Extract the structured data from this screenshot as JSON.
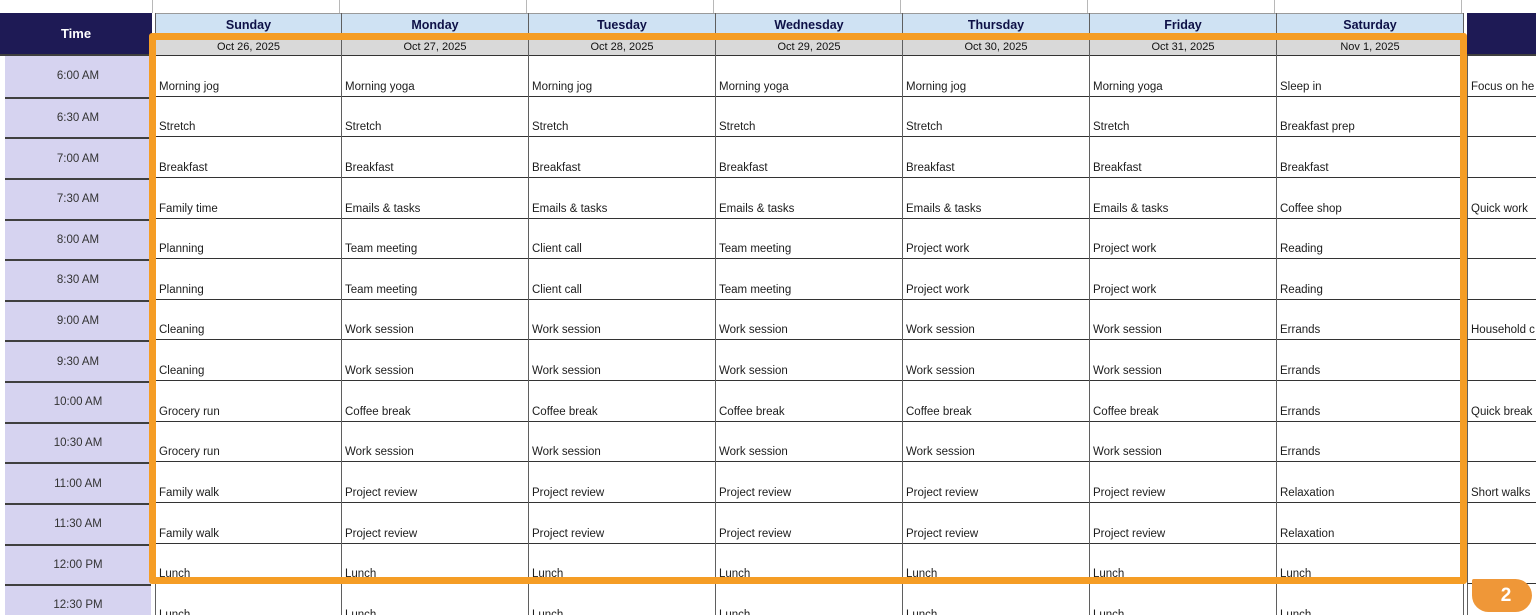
{
  "colors": {
    "navy_header": "#1e1a55",
    "time_cell_lavender": "#d6d3f0",
    "day_header_blue": "#cfe2f3",
    "date_row_gray": "#d9d9d9",
    "annotation_orange": "#f59d25",
    "badge_orange": "#ef9738"
  },
  "time_column": {
    "header": "Time",
    "slots": [
      "6:00 AM",
      "6:30 AM",
      "7:00 AM",
      "7:30 AM",
      "8:00 AM",
      "8:30 AM",
      "9:00 AM",
      "9:30 AM",
      "10:00 AM",
      "10:30 AM",
      "11:00 AM",
      "11:30 AM",
      "12:00 PM",
      "12:30 PM"
    ]
  },
  "days": [
    {
      "name": "Sunday",
      "date": "Oct 26, 2025",
      "activities": [
        "Morning jog",
        "Stretch",
        "Breakfast",
        "Family time",
        "Planning",
        "Planning",
        "Cleaning",
        "Cleaning",
        "Grocery run",
        "Grocery run",
        "Family walk",
        "Family walk",
        "Lunch",
        "Lunch"
      ]
    },
    {
      "name": "Monday",
      "date": "Oct 27, 2025",
      "activities": [
        "Morning yoga",
        "Stretch",
        "Breakfast",
        "Emails & tasks",
        "Team meeting",
        "Team meeting",
        "Work session",
        "Work session",
        "Coffee break",
        "Work session",
        "Project review",
        "Project review",
        "Lunch",
        "Lunch"
      ]
    },
    {
      "name": "Tuesday",
      "date": "Oct 28, 2025",
      "activities": [
        "Morning jog",
        "Stretch",
        "Breakfast",
        "Emails & tasks",
        "Client call",
        "Client call",
        "Work session",
        "Work session",
        "Coffee break",
        "Work session",
        "Project review",
        "Project review",
        "Lunch",
        "Lunch"
      ]
    },
    {
      "name": "Wednesday",
      "date": "Oct 29, 2025",
      "activities": [
        "Morning yoga",
        "Stretch",
        "Breakfast",
        "Emails & tasks",
        "Team meeting",
        "Team meeting",
        "Work session",
        "Work session",
        "Coffee break",
        "Work session",
        "Project review",
        "Project review",
        "Lunch",
        "Lunch"
      ]
    },
    {
      "name": "Thursday",
      "date": "Oct 30, 2025",
      "activities": [
        "Morning jog",
        "Stretch",
        "Breakfast",
        "Emails & tasks",
        "Project work",
        "Project work",
        "Work session",
        "Work session",
        "Coffee break",
        "Work session",
        "Project review",
        "Project review",
        "Lunch",
        "Lunch"
      ]
    },
    {
      "name": "Friday",
      "date": "Oct 31, 2025",
      "activities": [
        "Morning yoga",
        "Stretch",
        "Breakfast",
        "Emails & tasks",
        "Project work",
        "Project work",
        "Work session",
        "Work session",
        "Coffee break",
        "Work session",
        "Project review",
        "Project review",
        "Lunch",
        "Lunch"
      ]
    },
    {
      "name": "Saturday",
      "date": "Nov 1, 2025",
      "activities": [
        "Sleep in",
        "Breakfast prep",
        "Breakfast",
        "Coffee shop",
        "Reading",
        "Reading",
        "Errands",
        "Errands",
        "Errands",
        "Errands",
        "Relaxation",
        "Relaxation",
        "Lunch",
        "Lunch"
      ]
    }
  ],
  "extra_column": {
    "activities": [
      "Focus on he",
      "",
      "",
      "Quick work",
      "",
      "",
      "Household c",
      "",
      "Quick break",
      "",
      "Short walks",
      "",
      "",
      ""
    ]
  },
  "annotation": {
    "badge_label": "2"
  }
}
